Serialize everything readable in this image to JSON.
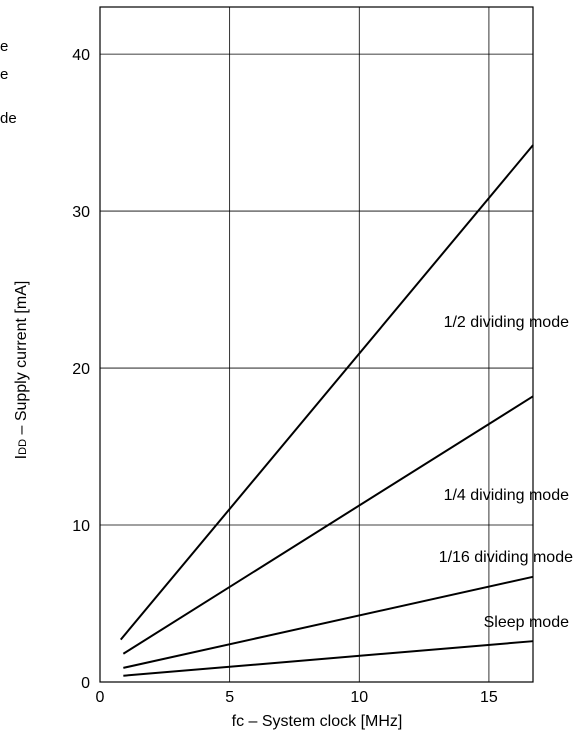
{
  "edge_fragments": [
    "e",
    "e",
    "de"
  ],
  "chart_data": {
    "type": "line",
    "title": "",
    "xlabel": "fc – System clock [MHz]",
    "ylabel_prefix": "I",
    "ylabel_subscript": "DD",
    "ylabel_suffix": " – Supply current [mA]",
    "xlim": [
      0,
      16.7
    ],
    "ylim": [
      0,
      43
    ],
    "x_ticks": [
      0,
      5,
      10,
      15
    ],
    "y_ticks": [
      0,
      10,
      20,
      30,
      40
    ],
    "grid": true,
    "legend": "none",
    "series": [
      {
        "name": "1/2 dividing mode",
        "x": [
          0.8,
          16.7
        ],
        "y": [
          2.7,
          34.2
        ]
      },
      {
        "name": "1/4 dividing mode",
        "x": [
          0.9,
          16.7
        ],
        "y": [
          1.8,
          18.2
        ]
      },
      {
        "name": "1/16 dividing mode",
        "x": [
          0.9,
          16.7
        ],
        "y": [
          0.9,
          6.7
        ]
      },
      {
        "name": "Sleep mode",
        "x": [
          0.9,
          16.7
        ],
        "y": [
          0.4,
          2.6
        ]
      }
    ],
    "line_color": "#000000",
    "grid_color": "#000000"
  }
}
